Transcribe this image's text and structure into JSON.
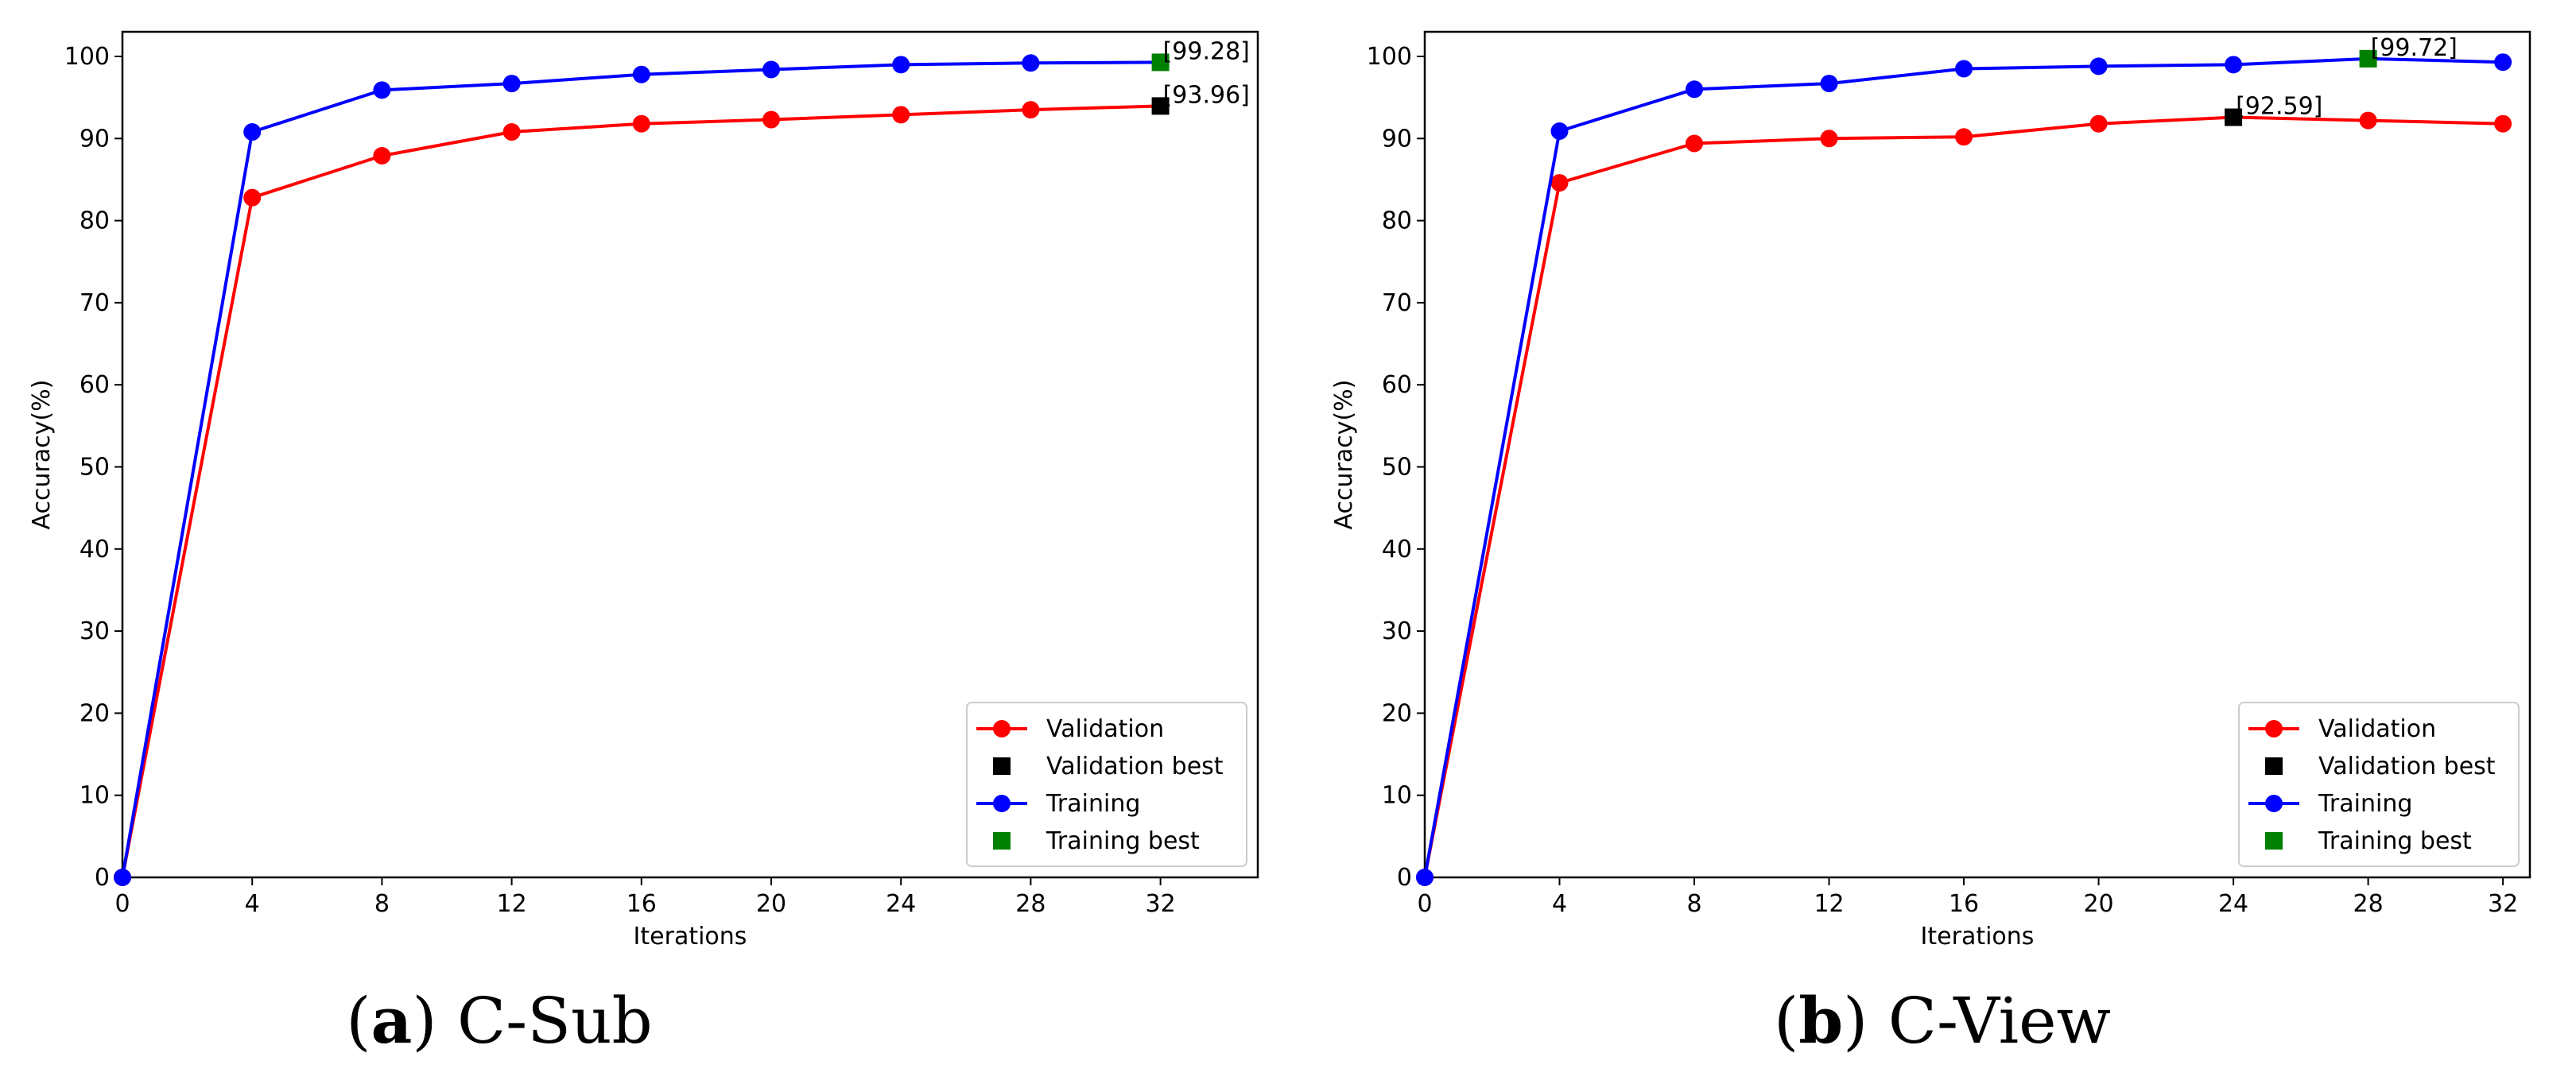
{
  "chart_data": [
    {
      "type": "line",
      "panel_letter": "a",
      "caption_text": "C-Sub",
      "title": "",
      "xlabel": "Iterations",
      "ylabel": "Accuracy(%)",
      "xlim": [
        0,
        35
      ],
      "ylim": [
        0,
        103
      ],
      "xticks": [
        0,
        4,
        8,
        12,
        16,
        20,
        24,
        28,
        32
      ],
      "yticks": [
        0,
        10,
        20,
        30,
        40,
        50,
        60,
        70,
        80,
        90,
        100
      ],
      "x": [
        0,
        4,
        8,
        12,
        16,
        20,
        24,
        28,
        32
      ],
      "series": [
        {
          "name": "Validation",
          "color": "#ff0000",
          "values": [
            0,
            82.8,
            87.9,
            90.8,
            91.8,
            92.3,
            92.9,
            93.5,
            93.96
          ]
        },
        {
          "name": "Training",
          "color": "#0000ff",
          "values": [
            0,
            90.8,
            95.9,
            96.7,
            97.8,
            98.4,
            99.0,
            99.2,
            99.28
          ]
        }
      ],
      "best_points": [
        {
          "name": "Validation best",
          "color": "#000000",
          "x": 32,
          "y": 93.96,
          "label": "[93.96]"
        },
        {
          "name": "Training best",
          "color": "#008000",
          "x": 32,
          "y": 99.28,
          "label": "[99.28]"
        }
      ],
      "legend_position": "lower-right",
      "legend": [
        {
          "label": "Validation",
          "kind": "line",
          "color": "#ff0000"
        },
        {
          "label": "Validation best",
          "kind": "square",
          "color": "#000000"
        },
        {
          "label": "Training",
          "kind": "line",
          "color": "#0000ff"
        },
        {
          "label": "Training best",
          "kind": "square",
          "color": "#008000"
        }
      ]
    },
    {
      "type": "line",
      "panel_letter": "b",
      "caption_text": "C-View",
      "title": "",
      "xlabel": "Iterations",
      "ylabel": "Accuracy(%)",
      "xlim": [
        0,
        32.8
      ],
      "ylim": [
        0,
        103
      ],
      "xticks": [
        0,
        4,
        8,
        12,
        16,
        20,
        24,
        28,
        32
      ],
      "yticks": [
        0,
        10,
        20,
        30,
        40,
        50,
        60,
        70,
        80,
        90,
        100
      ],
      "x": [
        0,
        4,
        8,
        12,
        16,
        20,
        24,
        28,
        32
      ],
      "series": [
        {
          "name": "Validation",
          "color": "#ff0000",
          "values": [
            0,
            84.6,
            89.4,
            90.0,
            90.2,
            91.8,
            92.59,
            92.2,
            91.8
          ]
        },
        {
          "name": "Training",
          "color": "#0000ff",
          "values": [
            0,
            90.9,
            96.0,
            96.7,
            98.5,
            98.8,
            99.0,
            99.72,
            99.3
          ]
        }
      ],
      "best_points": [
        {
          "name": "Validation best",
          "color": "#000000",
          "x": 24,
          "y": 92.59,
          "label": "[92.59]"
        },
        {
          "name": "Training best",
          "color": "#008000",
          "x": 28,
          "y": 99.72,
          "label": "[99.72]"
        }
      ],
      "legend_position": "lower-right",
      "legend": [
        {
          "label": "Validation",
          "kind": "line",
          "color": "#ff0000"
        },
        {
          "label": "Validation best",
          "kind": "square",
          "color": "#000000"
        },
        {
          "label": "Training",
          "kind": "line",
          "color": "#0000ff"
        },
        {
          "label": "Training best",
          "kind": "square",
          "color": "#008000"
        }
      ]
    }
  ]
}
